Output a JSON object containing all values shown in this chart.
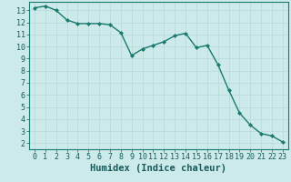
{
  "x": [
    0,
    1,
    2,
    3,
    4,
    5,
    6,
    7,
    8,
    9,
    10,
    11,
    12,
    13,
    14,
    15,
    16,
    17,
    18,
    19,
    20,
    21,
    22,
    23
  ],
  "y": [
    13.2,
    13.35,
    13.0,
    12.2,
    11.9,
    11.9,
    11.9,
    11.8,
    11.15,
    9.25,
    9.8,
    10.1,
    10.4,
    10.9,
    11.1,
    9.9,
    10.1,
    8.5,
    6.4,
    4.5,
    3.5,
    2.8,
    2.6,
    2.1
  ],
  "xlabel": "Humidex (Indice chaleur)",
  "ylim": [
    1.5,
    13.7
  ],
  "xlim": [
    -0.5,
    23.5
  ],
  "yticks": [
    2,
    3,
    4,
    5,
    6,
    7,
    8,
    9,
    10,
    11,
    12,
    13
  ],
  "xticks": [
    0,
    1,
    2,
    3,
    4,
    5,
    6,
    7,
    8,
    9,
    10,
    11,
    12,
    13,
    14,
    15,
    16,
    17,
    18,
    19,
    20,
    21,
    22,
    23
  ],
  "line_color": "#1a7a6e",
  "marker": "D",
  "marker_size": 2.0,
  "bg_color": "#cceaea",
  "grid_color": "#b8d8d8",
  "axis_bg": "#cceaea",
  "xlabel_fontsize": 7.5,
  "tick_fontsize": 6.0,
  "linewidth": 1.0
}
